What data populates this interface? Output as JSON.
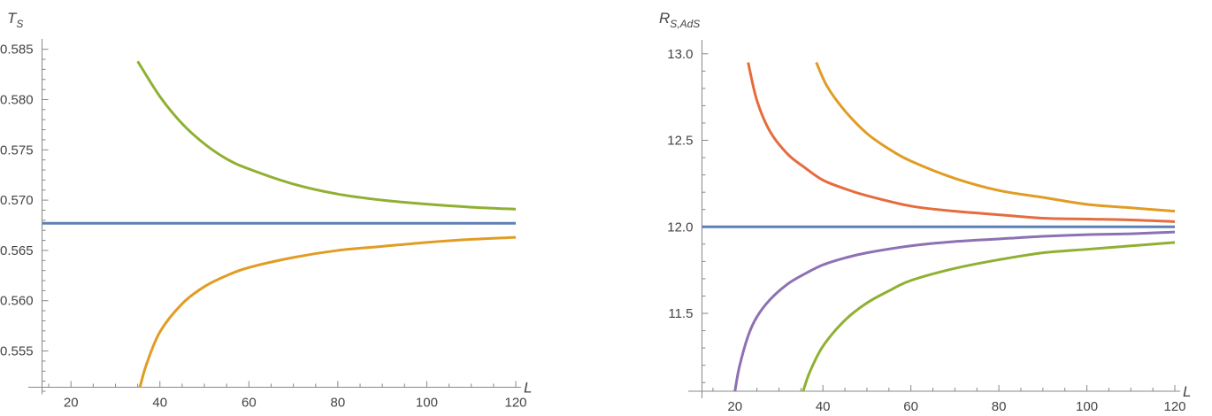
{
  "chart_data": [
    {
      "type": "line",
      "ylabel_main": "T",
      "ylabel_sub": "S",
      "xlabel": "L",
      "xlim": [
        12,
        120
      ],
      "ylim": [
        0.551,
        0.5855
      ],
      "x_axis_at_y": 0.5514,
      "y_axis_at_x": 13.5,
      "xticks": [
        20,
        40,
        60,
        80,
        100,
        120
      ],
      "yticks": [
        0.555,
        0.56,
        0.565,
        0.57,
        0.575,
        0.58,
        0.585
      ],
      "ytick_labels": [
        "0.555",
        "0.560",
        "0.565",
        "0.570",
        "0.575",
        "0.580",
        "0.585"
      ],
      "series": [
        {
          "color": "#5e81b5",
          "x": [
            13.5,
            120
          ],
          "y": [
            0.5677,
            0.5677
          ]
        },
        {
          "color": "#8fb032",
          "x": [
            35,
            40,
            45,
            50,
            55,
            60,
            70,
            80,
            90,
            100,
            110,
            120
          ],
          "y": [
            0.5838,
            0.5803,
            0.5776,
            0.5756,
            0.5741,
            0.5731,
            0.5716,
            0.5706,
            0.57,
            0.5696,
            0.5693,
            0.5691
          ]
        },
        {
          "color": "#e19c24",
          "x": [
            35.5,
            37,
            40,
            45,
            50,
            55,
            60,
            70,
            80,
            90,
            100,
            110,
            120
          ],
          "y": [
            0.5514,
            0.5537,
            0.5569,
            0.5597,
            0.5614,
            0.5625,
            0.5633,
            0.5643,
            0.565,
            0.5654,
            0.5658,
            0.5661,
            0.5663
          ]
        }
      ]
    },
    {
      "type": "line",
      "ylabel_main": "R",
      "ylabel_sub": "S,AdS",
      "xlabel": "L",
      "xlim": [
        11,
        120
      ],
      "ylim": [
        11.05,
        13.05
      ],
      "x_axis_at_y": 11.05,
      "y_axis_at_x": 12.5,
      "xticks": [
        20,
        40,
        60,
        80,
        100,
        120
      ],
      "yticks": [
        11.5,
        12.0,
        12.5,
        13.0
      ],
      "ytick_labels": [
        "11.5",
        "12.0",
        "12.5",
        "13.0"
      ],
      "series": [
        {
          "color": "#5e81b5",
          "x": [
            12.5,
            120
          ],
          "y": [
            12.0,
            12.0
          ]
        },
        {
          "color": "#e56c3c",
          "x": [
            23,
            25,
            28,
            32,
            36,
            40,
            45,
            50,
            60,
            70,
            80,
            90,
            100,
            110,
            120
          ],
          "y": [
            12.95,
            12.73,
            12.55,
            12.42,
            12.34,
            12.27,
            12.22,
            12.18,
            12.12,
            12.09,
            12.07,
            12.05,
            12.045,
            12.04,
            12.03
          ]
        },
        {
          "color": "#e19c24",
          "x": [
            38.5,
            41,
            45,
            50,
            55,
            60,
            70,
            80,
            90,
            100,
            110,
            120
          ],
          "y": [
            12.95,
            12.81,
            12.67,
            12.54,
            12.45,
            12.38,
            12.28,
            12.21,
            12.17,
            12.13,
            12.11,
            12.09
          ]
        },
        {
          "color": "#8c71b4",
          "x": [
            20,
            21,
            23,
            25,
            28,
            32,
            36,
            40,
            45,
            50,
            60,
            70,
            80,
            90,
            100,
            110,
            120
          ],
          "y": [
            11.05,
            11.19,
            11.37,
            11.48,
            11.58,
            11.67,
            11.73,
            11.78,
            11.82,
            11.85,
            11.89,
            11.915,
            11.93,
            11.945,
            11.955,
            11.96,
            11.97
          ]
        },
        {
          "color": "#8fb032",
          "x": [
            35.5,
            37,
            40,
            45,
            50,
            55,
            60,
            70,
            80,
            90,
            100,
            110,
            120
          ],
          "y": [
            11.05,
            11.16,
            11.31,
            11.46,
            11.56,
            11.63,
            11.69,
            11.76,
            11.81,
            11.85,
            11.87,
            11.89,
            11.91
          ]
        }
      ]
    }
  ]
}
